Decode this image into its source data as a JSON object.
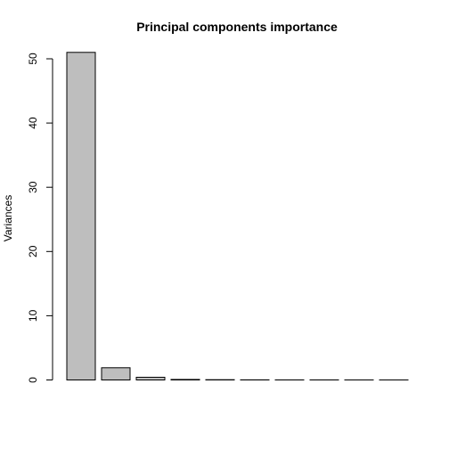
{
  "chart_data": {
    "type": "bar",
    "title": "Principal components importance",
    "xlabel": "",
    "ylabel": "Variances",
    "categories": [
      "",
      "",
      "",
      "",
      "",
      "",
      "",
      "",
      "",
      ""
    ],
    "values": [
      51.0,
      1.9,
      0.42,
      0.08,
      0.04,
      0.02,
      0.01,
      0.01,
      0.005,
      0.003
    ],
    "ylim": [
      0,
      50
    ],
    "yticks": [
      0,
      10,
      20,
      30,
      40,
      50
    ],
    "ytick_labels": [
      "0",
      "10",
      "20",
      "30",
      "40",
      "50"
    ],
    "grid": false,
    "legend": "none",
    "bar_fill": "#bebebe",
    "bar_stroke": "#000000"
  }
}
